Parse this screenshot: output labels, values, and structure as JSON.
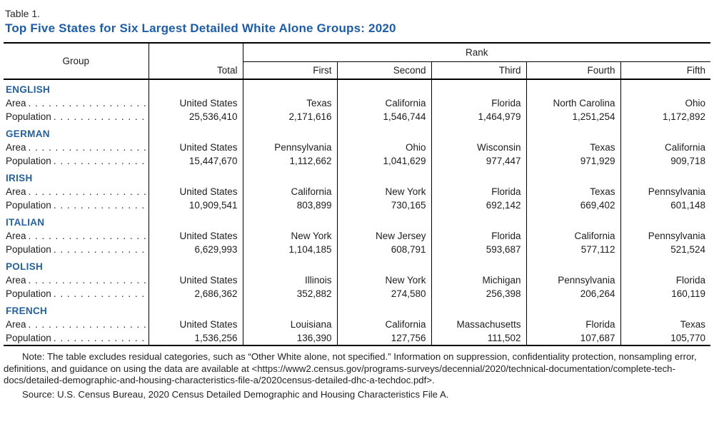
{
  "page": {
    "table_label": "Table 1.",
    "title": "Top Five States for Six Largest Detailed White Alone Groups: 2020"
  },
  "colors": {
    "title_blue": "#1e5da6",
    "group_heading_blue": "#23619f",
    "border_black": "#000000"
  },
  "table": {
    "header": {
      "group": "Group",
      "total": "Total",
      "rank": "Rank",
      "ranks": [
        "First",
        "Second",
        "Third",
        "Fourth",
        "Fifth"
      ]
    },
    "row_labels": {
      "area": "Area",
      "population": "Population"
    },
    "groups": [
      {
        "name": "ENGLISH",
        "areas": [
          "United States",
          "Texas",
          "California",
          "Florida",
          "North Carolina",
          "Ohio"
        ],
        "populations": [
          "25,536,410",
          "2,171,616",
          "1,546,744",
          "1,464,979",
          "1,251,254",
          "1,172,892"
        ]
      },
      {
        "name": "GERMAN",
        "areas": [
          "United States",
          "Pennsylvania",
          "Ohio",
          "Wisconsin",
          "Texas",
          "California"
        ],
        "populations": [
          "15,447,670",
          "1,112,662",
          "1,041,629",
          "977,447",
          "971,929",
          "909,718"
        ]
      },
      {
        "name": "IRISH",
        "areas": [
          "United States",
          "California",
          "New York",
          "Florida",
          "Texas",
          "Pennsylvania"
        ],
        "populations": [
          "10,909,541",
          "803,899",
          "730,165",
          "692,142",
          "669,402",
          "601,148"
        ]
      },
      {
        "name": "ITALIAN",
        "areas": [
          "United States",
          "New York",
          "New Jersey",
          "Florida",
          "California",
          "Pennsylvania"
        ],
        "populations": [
          "6,629,993",
          "1,104,185",
          "608,791",
          "593,687",
          "577,112",
          "521,524"
        ]
      },
      {
        "name": "POLISH",
        "areas": [
          "United States",
          "Illinois",
          "New York",
          "Michigan",
          "Pennsylvania",
          "Florida"
        ],
        "populations": [
          "2,686,362",
          "352,882",
          "274,580",
          "256,398",
          "206,264",
          "160,119"
        ]
      },
      {
        "name": "FRENCH",
        "areas": [
          "United States",
          "Louisiana",
          "California",
          "Massachusetts",
          "Florida",
          "Texas"
        ],
        "populations": [
          "1,536,256",
          "136,390",
          "127,756",
          "111,502",
          "107,687",
          "105,770"
        ]
      }
    ]
  },
  "notes": {
    "note": "Note: The table excludes residual categories, such as “Other White alone, not specified.” Information on suppression, confidentiality protection, nonsampling error, definitions, and guidance on using the data are available at <https://www2.census.gov/programs-surveys/decennial/2020/technical-documentation/complete-tech-docs/detailed-demographic-and-housing-characteristics-file-a/2020census-detailed-dhc-a-techdoc.pdf>.",
    "source": "Source: U.S. Census Bureau, 2020 Census Detailed Demographic and Housing Characteristics File A."
  }
}
